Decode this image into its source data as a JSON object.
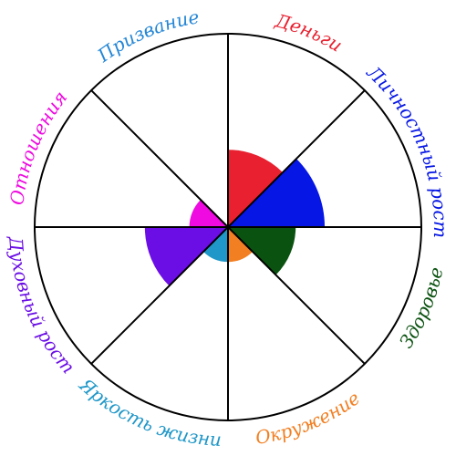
{
  "chart_data": {
    "type": "pie",
    "subtype": "polar-area",
    "title": "",
    "max_value": 10,
    "grid": "radial-spokes",
    "categories": [
      {
        "label": "Деньги",
        "value": 4,
        "color": "#e8202f"
      },
      {
        "label": "Личностный рост",
        "value": 5,
        "color": "#0516e5"
      },
      {
        "label": "Здоровье",
        "value": 3.5,
        "color": "#0a5210"
      },
      {
        "label": "Окружение",
        "value": 1.8,
        "color": "#f27f22"
      },
      {
        "label": "Яркость жизни",
        "value": 1.8,
        "color": "#1f97c8"
      },
      {
        "label": "Духовный рост",
        "value": 4.3,
        "color": "#6b0ee5"
      },
      {
        "label": "Отношения",
        "value": 2,
        "color": "#ee0ae0"
      },
      {
        "label": "Призвание",
        "value": 0,
        "color": "#2486d6"
      }
    ]
  }
}
